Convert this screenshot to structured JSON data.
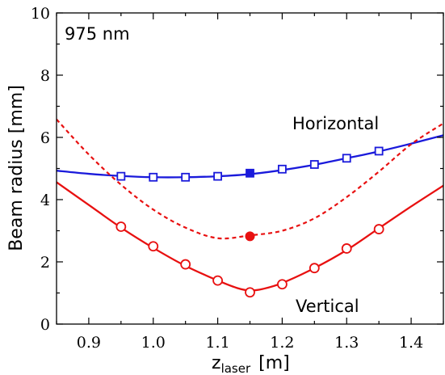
{
  "chart_data": {
    "type": "line",
    "annotation": "975 nm",
    "xlabel": "z",
    "xlabel_sub": "laser",
    "xlabel_unit": "[m]",
    "ylabel": "Beam radius [mm]",
    "xlim": [
      0.85,
      1.45
    ],
    "ylim": [
      0,
      10
    ],
    "xticks": [
      0.9,
      1.0,
      1.1,
      1.2,
      1.3,
      1.4
    ],
    "xtick_labels": [
      "0.9",
      "1.0",
      "1.1",
      "1.2",
      "1.3",
      "1.4"
    ],
    "yticks": [
      0,
      2,
      4,
      6,
      8,
      10
    ],
    "ytick_labels": [
      "0",
      "2",
      "4",
      "6",
      "8",
      "10"
    ],
    "series": [
      {
        "name": "Horizontal",
        "color": "#1a1adb",
        "marker": "open-square",
        "points_x": [
          0.95,
          1.0,
          1.05,
          1.1,
          1.15,
          1.2,
          1.25,
          1.3,
          1.35
        ],
        "points_y": [
          4.75,
          4.72,
          4.72,
          4.75,
          4.85,
          4.98,
          5.13,
          5.33,
          5.56
        ],
        "fit_x": [
          0.85,
          0.9,
          0.95,
          1.0,
          1.05,
          1.1,
          1.15,
          1.2,
          1.25,
          1.3,
          1.35,
          1.4,
          1.45
        ],
        "fit_y": [
          4.93,
          4.83,
          4.76,
          4.72,
          4.72,
          4.75,
          4.82,
          4.95,
          5.12,
          5.33,
          5.55,
          5.8,
          6.07
        ],
        "highlight_x": 1.15,
        "highlight_y": 4.85
      },
      {
        "name": "Vertical",
        "color": "#e81010",
        "marker": "open-circle",
        "points_x": [
          0.95,
          1.0,
          1.05,
          1.1,
          1.15,
          1.2,
          1.25,
          1.3,
          1.35
        ],
        "points_y": [
          3.13,
          2.5,
          1.92,
          1.4,
          1.02,
          1.28,
          1.8,
          2.43,
          3.05
        ],
        "fit_x": [
          0.85,
          0.9,
          0.95,
          1.0,
          1.05,
          1.1,
          1.13,
          1.15,
          1.17,
          1.2,
          1.25,
          1.3,
          1.35,
          1.4,
          1.45
        ],
        "fit_y": [
          4.56,
          3.83,
          3.1,
          2.45,
          1.87,
          1.4,
          1.16,
          1.08,
          1.13,
          1.32,
          1.8,
          2.38,
          3.08,
          3.78,
          4.45
        ]
      },
      {
        "name": "",
        "color": "#e81010",
        "style": "dashed",
        "fit_x": [
          0.85,
          0.9,
          0.95,
          1.0,
          1.05,
          1.1,
          1.15,
          1.2,
          1.25,
          1.3,
          1.35,
          1.4,
          1.45
        ],
        "fit_y": [
          6.58,
          5.45,
          4.48,
          3.68,
          3.1,
          2.76,
          2.85,
          3.0,
          3.4,
          4.08,
          4.9,
          5.78,
          6.45
        ],
        "highlight_x": 1.15,
        "highlight_y": 2.82
      }
    ],
    "series_labels": [
      "Horizontal",
      "Vertical"
    ]
  }
}
